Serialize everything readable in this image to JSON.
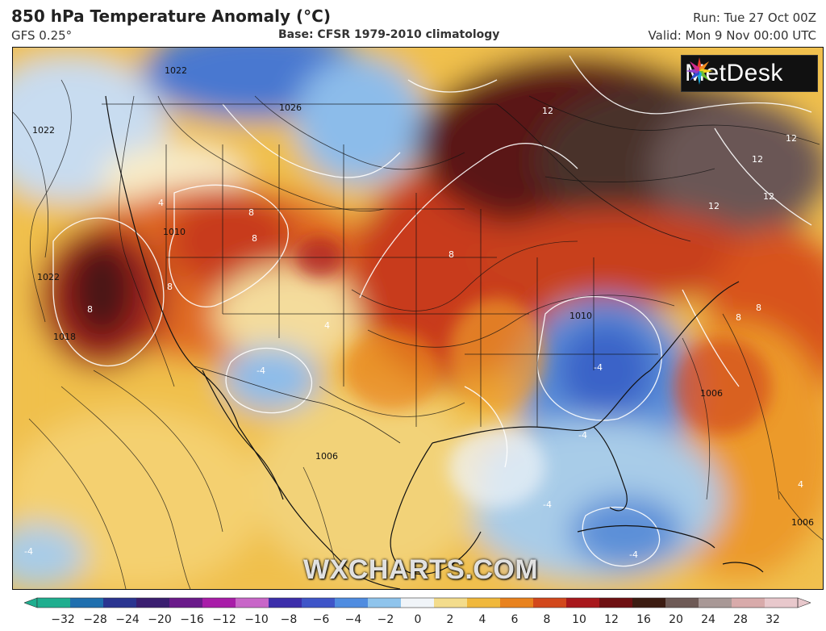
{
  "header": {
    "title": "850 hPa Temperature Anomaly (°C)",
    "model": "GFS 0.25°",
    "base": "Base: CFSR 1979-2010 climatology",
    "run": "Run: Tue 27 Oct 00Z",
    "valid": "Valid: Mon 9 Nov 00:00 UTC"
  },
  "logo": {
    "text": "MetDesk",
    "icon": "metdesk-star-icon"
  },
  "watermark": "WXCHARTS.COM",
  "colorbar": {
    "ticks": [
      "−32",
      "−28",
      "−24",
      "−20",
      "−16",
      "−12",
      "−10",
      "−8",
      "−6",
      "−4",
      "−2",
      "0",
      "2",
      "4",
      "6",
      "8",
      "10",
      "12",
      "16",
      "20",
      "24",
      "28",
      "32"
    ],
    "colors": [
      "#1fae8f",
      "#1f6fae",
      "#2a3490",
      "#3a1e70",
      "#6a1a8a",
      "#a81ca8",
      "#c866c8",
      "#3c2eaa",
      "#3f55c8",
      "#4f8ce0",
      "#8fc4ec",
      "#f0f4f8",
      "#f3dc8c",
      "#f0b83c",
      "#e8821e",
      "#d2481c",
      "#a8181c",
      "#6e1012",
      "#3c1c12",
      "#6e5a56",
      "#a89896",
      "#d8aaaa",
      "#e8c8cc"
    ]
  },
  "map_labels": {
    "isobars": [
      "1022",
      "1022",
      "1026",
      "1010",
      "1022",
      "1018",
      "1006",
      "1006",
      "1006",
      "1010"
    ],
    "anomaly": [
      "12",
      "12",
      "12",
      "12",
      "12",
      "8",
      "8",
      "8",
      "8",
      "8",
      "8",
      "8",
      "-4",
      "-4",
      "-4",
      "-4",
      "-4",
      "-4",
      "4",
      "4",
      "4"
    ]
  }
}
